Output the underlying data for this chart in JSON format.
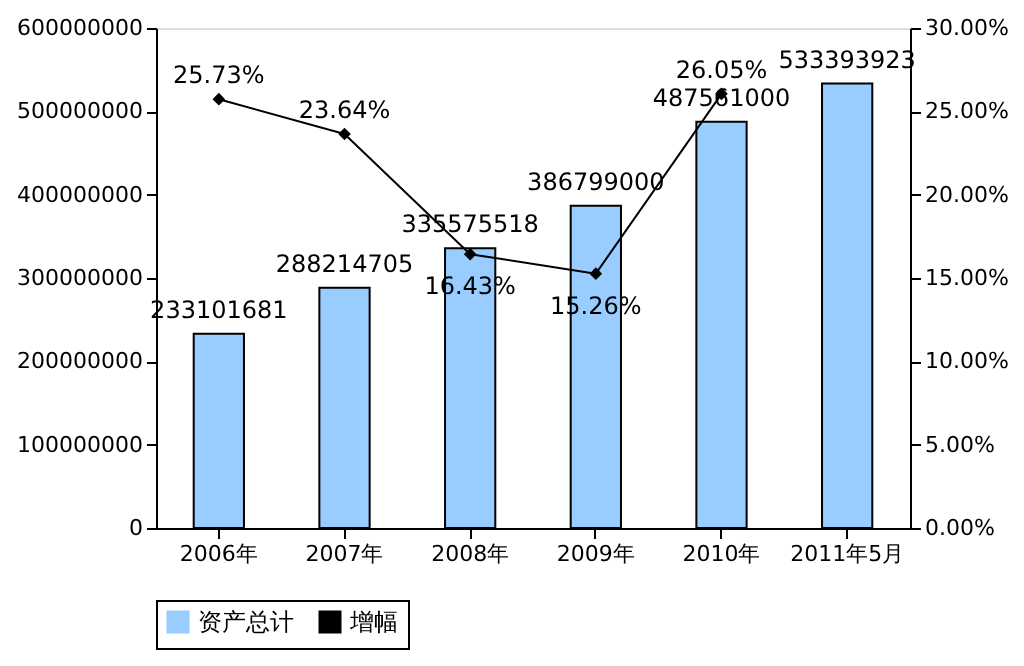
{
  "chart_data": {
    "type": "bar",
    "categories": [
      "2006年",
      "2007年",
      "2008年",
      "2009年",
      "2010年",
      "2011年5月"
    ],
    "series": [
      {
        "name": "资产总计",
        "color": "#99ccff",
        "values": [
          233101681,
          288214705,
          335575518,
          386799000,
          487561000,
          533393923
        ],
        "value_labels": [
          "233101681",
          "288214705",
          "335575518",
          "386799000",
          "487561000",
          "533393923"
        ]
      },
      {
        "name": "增幅",
        "type": "line",
        "axis": "y2",
        "color": "#000000",
        "marker": "diamond",
        "values": [
          25.73,
          23.64,
          16.43,
          15.26,
          26.05,
          null
        ],
        "value_labels": [
          "25.73%",
          "23.64%",
          "16.43%",
          "15.26%",
          "26.05%",
          null
        ]
      }
    ],
    "ylim": [
      0,
      600000000
    ],
    "yticks": [
      0,
      100000000,
      200000000,
      300000000,
      400000000,
      500000000,
      600000000
    ],
    "y2lim": [
      0,
      30
    ],
    "y2ticks": [
      {
        "value": 0,
        "label": "0.00%"
      },
      {
        "value": 5,
        "label": "5.00%"
      },
      {
        "value": 10,
        "label": "10.00%"
      },
      {
        "value": 15,
        "label": "15.00%"
      },
      {
        "value": 20,
        "label": "20.00%"
      },
      {
        "value": 25,
        "label": "25.00%"
      },
      {
        "value": 30,
        "label": "30.00%"
      }
    ],
    "grid": false,
    "legend": "bottom"
  }
}
